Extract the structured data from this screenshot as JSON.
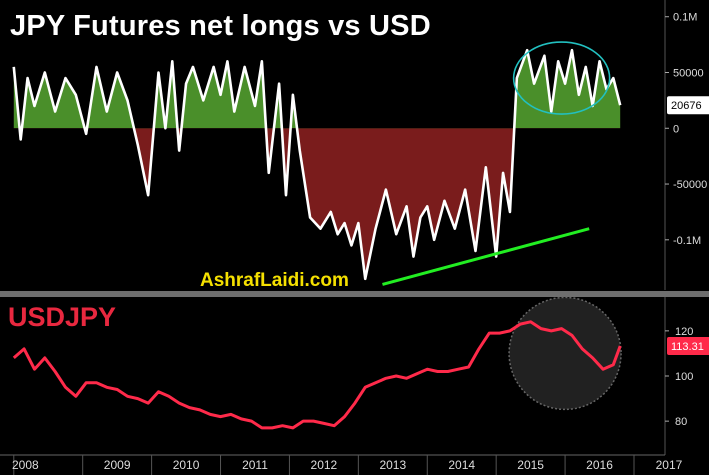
{
  "chart_data": [
    {
      "type": "area",
      "title": "JPY Futures net longs vs USD",
      "watermark": "AshrafLaidi.com",
      "y_tick_labels": [
        "0.1M",
        "50000",
        "0",
        "-50000",
        "-0.1M"
      ],
      "ylim": [
        -145000,
        115000
      ],
      "last_value_label": "20676",
      "last_value": 20676,
      "positive_color": "#4a8f2a",
      "negative_color": "#7a1c1c",
      "line_color": "#ffffff",
      "series": [
        {
          "x": [
            2008.0,
            2008.1,
            2008.2,
            2008.3,
            2008.45,
            2008.6,
            2008.75,
            2008.9,
            2009.05,
            2009.2,
            2009.35,
            2009.5,
            2009.65,
            2009.8,
            2009.95,
            2010.1,
            2010.2,
            2010.3,
            2010.4,
            2010.5,
            2010.6,
            2010.75,
            2010.9,
            2011.0,
            2011.1,
            2011.2,
            2011.35,
            2011.5,
            2011.6,
            2011.7,
            2011.85,
            2011.95,
            2012.05,
            2012.15,
            2012.3,
            2012.45,
            2012.6,
            2012.7,
            2012.8,
            2012.9,
            2013.0,
            2013.1,
            2013.25,
            2013.4,
            2013.55,
            2013.7,
            2013.8,
            2013.9,
            2014.0,
            2014.1,
            2014.25,
            2014.4,
            2014.55,
            2014.7,
            2014.85,
            2015.0,
            2015.1,
            2015.2,
            2015.3,
            2015.45,
            2015.55,
            2015.7,
            2015.8,
            2015.9,
            2016.0,
            2016.1,
            2016.2,
            2016.3,
            2016.4,
            2016.5,
            2016.6,
            2016.7,
            2016.8
          ],
          "values": [
            55000,
            -10000,
            45000,
            20000,
            50000,
            15000,
            45000,
            30000,
            -5000,
            55000,
            15000,
            50000,
            25000,
            -15000,
            -60000,
            50000,
            0,
            60000,
            -20000,
            40000,
            55000,
            25000,
            55000,
            30000,
            60000,
            15000,
            55000,
            20000,
            60000,
            -40000,
            40000,
            -60000,
            30000,
            -20000,
            -80000,
            -90000,
            -75000,
            -95000,
            -85000,
            -105000,
            -85000,
            -135000,
            -90000,
            -55000,
            -95000,
            -70000,
            -115000,
            -80000,
            -70000,
            -100000,
            -65000,
            -90000,
            -55000,
            -110000,
            -35000,
            -115000,
            -40000,
            -75000,
            45000,
            70000,
            40000,
            65000,
            15000,
            60000,
            40000,
            70000,
            30000,
            55000,
            20000,
            60000,
            35000,
            45000,
            20676
          ]
        }
      ],
      "annotations": [
        {
          "type": "trendline",
          "color": "#22ee22",
          "x": [
            2013.35,
            2016.35
          ],
          "y": [
            -140000,
            -90000
          ]
        },
        {
          "type": "ellipse",
          "color": "#22c0c0",
          "center": [
            2015.95,
            45000
          ]
        }
      ]
    },
    {
      "type": "line",
      "title": "USDJPY",
      "y_tick_labels": [
        "120",
        "100",
        "80"
      ],
      "ylim": [
        65,
        135
      ],
      "last_value_label": "113.31",
      "last_value": 113.31,
      "line_color": "#ff2a4a",
      "series": [
        {
          "x": [
            2008.0,
            2008.15,
            2008.3,
            2008.45,
            2008.6,
            2008.75,
            2008.9,
            2009.05,
            2009.2,
            2009.35,
            2009.5,
            2009.65,
            2009.8,
            2009.95,
            2010.1,
            2010.25,
            2010.4,
            2010.55,
            2010.7,
            2010.85,
            2011.0,
            2011.15,
            2011.3,
            2011.45,
            2011.6,
            2011.75,
            2011.9,
            2012.05,
            2012.2,
            2012.35,
            2012.5,
            2012.65,
            2012.8,
            2012.95,
            2013.1,
            2013.25,
            2013.4,
            2013.55,
            2013.7,
            2013.85,
            2014.0,
            2014.15,
            2014.3,
            2014.45,
            2014.6,
            2014.75,
            2014.9,
            2015.05,
            2015.2,
            2015.35,
            2015.5,
            2015.65,
            2015.8,
            2015.95,
            2016.1,
            2016.25,
            2016.4,
            2016.55,
            2016.7,
            2016.8
          ],
          "values": [
            108,
            112,
            103,
            108,
            102,
            95,
            91,
            97,
            97,
            95,
            94,
            91,
            90,
            88,
            93,
            91,
            88,
            86,
            85,
            83,
            82,
            83,
            81,
            80,
            77,
            77,
            78,
            77,
            80,
            80,
            79,
            78,
            82,
            88,
            95,
            97,
            99,
            100,
            99,
            101,
            103,
            102,
            102,
            103,
            104,
            112,
            119,
            119,
            120,
            123,
            124,
            121,
            120,
            121,
            118,
            112,
            108,
            103,
            105,
            113.31
          ]
        }
      ],
      "annotations": [
        {
          "type": "circle",
          "color": "#666666",
          "center": [
            2016.0,
            110
          ]
        }
      ]
    }
  ],
  "x_tick_labels": [
    "2008",
    "2009",
    "2010",
    "2011",
    "2012",
    "2013",
    "2014",
    "2015",
    "2016",
    "2017"
  ],
  "x_ticks": [
    2008,
    2009,
    2010,
    2011,
    2012,
    2013,
    2014,
    2015,
    2016,
    2017
  ]
}
